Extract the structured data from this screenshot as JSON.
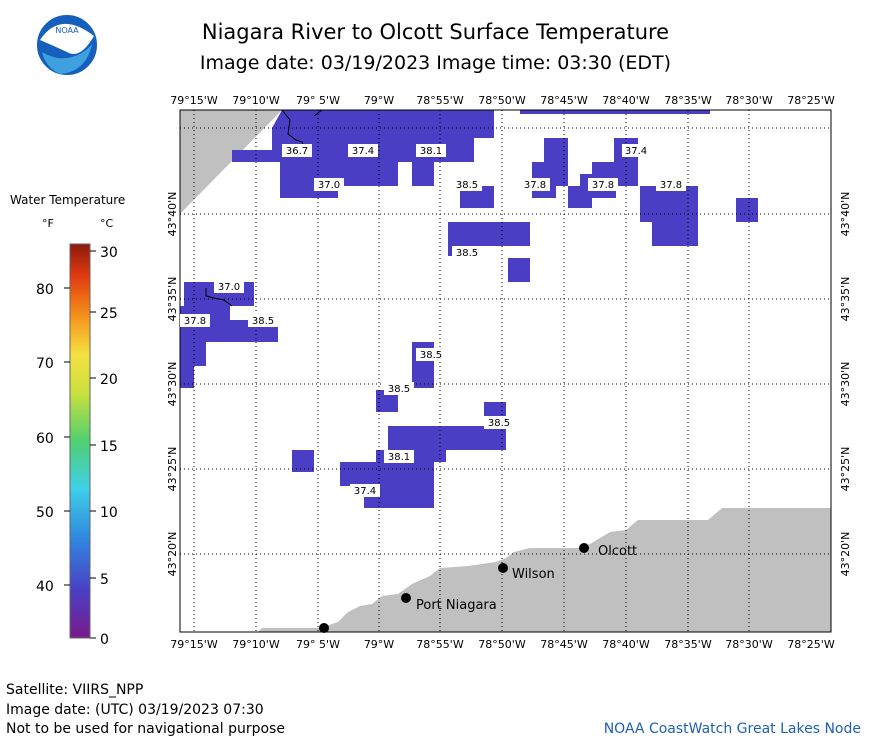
{
  "header": {
    "title": "Niagara River to Olcott Surface Temperature",
    "subtitle": "Image date: 03/19/2023     Image time: 03:30 (EDT)"
  },
  "logo": {
    "icon": "noaa-logo-icon",
    "text": "NOAA"
  },
  "legend": {
    "title": "Water Temperature",
    "unit_f": "°F",
    "unit_c": "°C",
    "f_ticks": [
      "80",
      "70",
      "60",
      "50",
      "40"
    ],
    "c_ticks": [
      "30",
      "25",
      "20",
      "15",
      "10",
      "5",
      "0"
    ]
  },
  "map": {
    "lon_labels": [
      "79°15'W",
      "79°10'W",
      "79° 5'W",
      "79°W",
      "78°55'W",
      "78°50'W",
      "78°45'W",
      "78°40'W",
      "78°35'W",
      "78°30'W",
      "78°25'W"
    ],
    "lat_labels": [
      "43°40'N",
      "43°35'N",
      "43°30'N",
      "43°25'N",
      "43°20'N"
    ],
    "places": [
      "Olcott",
      "Wilson",
      "Port Niagara"
    ],
    "temp_labels": [
      "36.7",
      "37.4",
      "38.1",
      "37.4",
      "37.0",
      "38.5",
      "37.8",
      "37.8",
      "37.8",
      "38.5",
      "37.0",
      "37.8",
      "38.5",
      "38.5",
      "38.5",
      "38.5",
      "38.1",
      "37.4"
    ]
  },
  "footer": {
    "satellite": "Satellite: VIIRS_NPP",
    "utc_date": "Image date: (UTC) 03/19/2023  07:30",
    "disclaimer": "Not to be used for navigational purpose",
    "credit": "NOAA CoastWatch Great Lakes Node"
  },
  "colors": {
    "water": "#4a3fc4",
    "water_dark": "#4636b8",
    "land": "#c0c0c0",
    "credit": "#1f5fb5"
  }
}
